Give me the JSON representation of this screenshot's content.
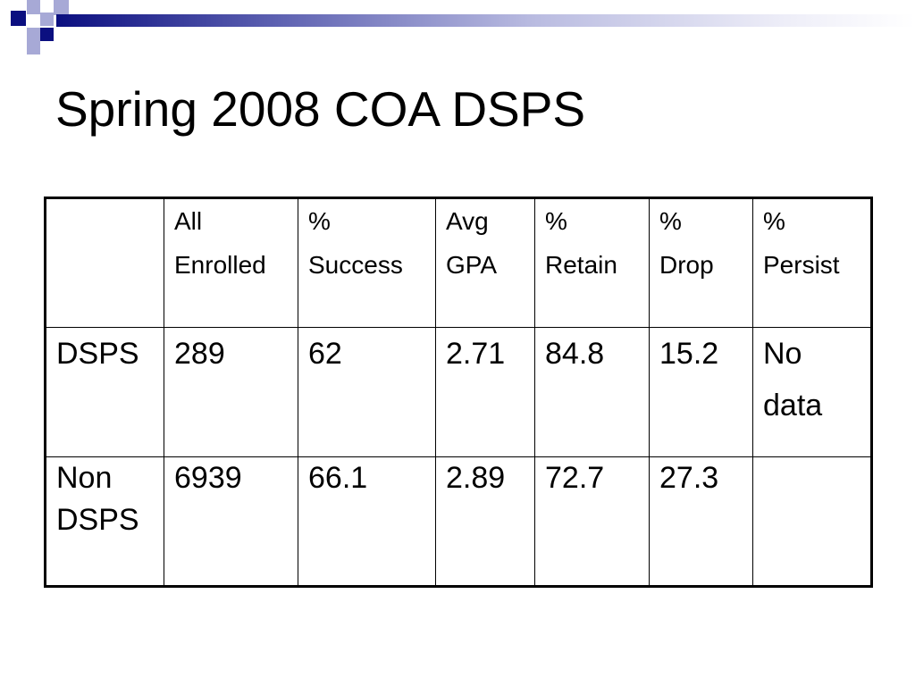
{
  "slide": {
    "title": "Spring 2008 COA DSPS"
  },
  "table": {
    "headers": [
      [
        "",
        ""
      ],
      [
        "All",
        "Enrolled"
      ],
      [
        "%",
        "Success"
      ],
      [
        "Avg",
        "GPA"
      ],
      [
        "%",
        "Retain"
      ],
      [
        "%",
        "Drop"
      ],
      [
        "%",
        "Persist"
      ]
    ],
    "rows": [
      {
        "label": [
          "DSPS"
        ],
        "values": [
          "289",
          "62",
          "2.71",
          "84.8",
          "15.2"
        ],
        "persist": [
          "No",
          "data"
        ]
      },
      {
        "label": [
          "Non",
          "DSPS"
        ],
        "values": [
          "6939",
          "66.1",
          "2.89",
          "72.7",
          "27.3"
        ],
        "persist": [
          "",
          ""
        ]
      }
    ]
  },
  "colors": {
    "accent_dark": "#0b0f80",
    "accent_light": "#a7a9d6"
  }
}
